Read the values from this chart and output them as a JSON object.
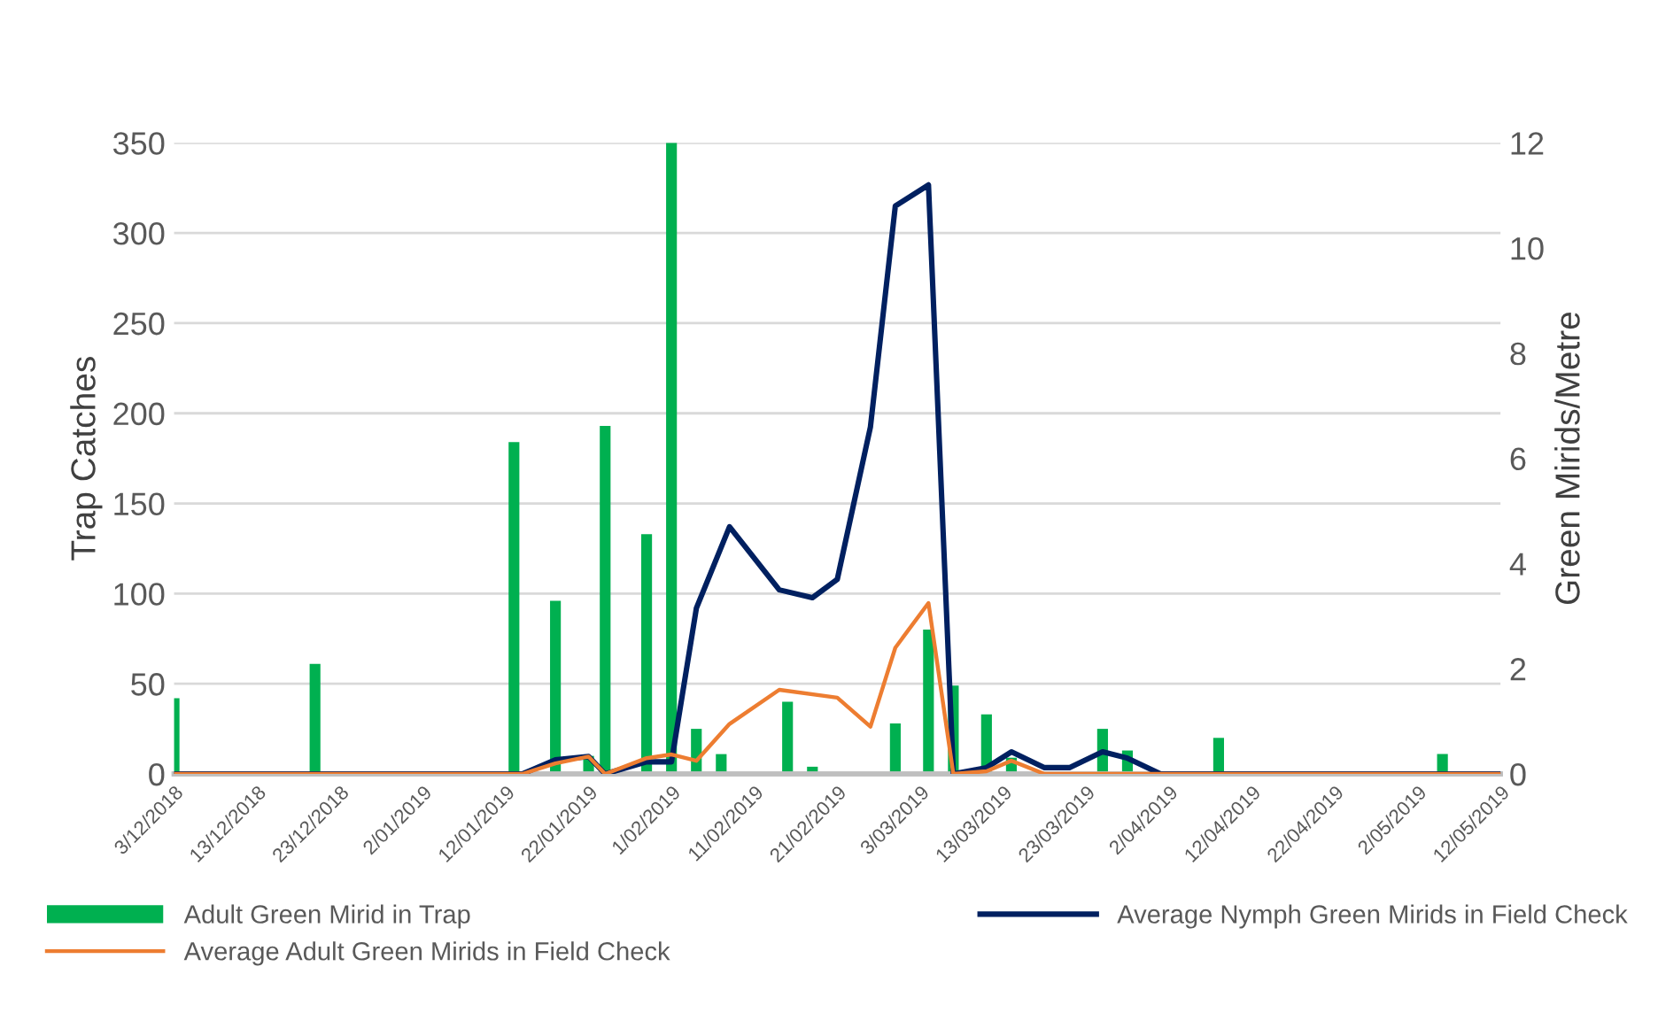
{
  "chart_data": {
    "type": "bar",
    "ylabel": "Trap Catches",
    "y2label": "Green Mirids/Metre",
    "xlim": [
      "2018-12-03",
      "2019-05-12"
    ],
    "xticks": [
      {
        "value": "2018-12-03",
        "label": "3/12/2018"
      },
      {
        "value": "2018-12-13",
        "label": "13/12/2018"
      },
      {
        "value": "2018-12-23",
        "label": "23/12/2018"
      },
      {
        "value": "2019-01-02",
        "label": "2/01/2019"
      },
      {
        "value": "2019-01-12",
        "label": "12/01/2019"
      },
      {
        "value": "2019-01-22",
        "label": "22/01/2019"
      },
      {
        "value": "2019-02-01",
        "label": "1/02/2019"
      },
      {
        "value": "2019-02-11",
        "label": "11/02/2019"
      },
      {
        "value": "2019-02-21",
        "label": "21/02/2019"
      },
      {
        "value": "2019-03-03",
        "label": "3/03/2019"
      },
      {
        "value": "2019-03-13",
        "label": "13/03/2019"
      },
      {
        "value": "2019-03-23",
        "label": "23/03/2019"
      },
      {
        "value": "2019-04-02",
        "label": "2/04/2019"
      },
      {
        "value": "2019-04-12",
        "label": "12/04/2019"
      },
      {
        "value": "2019-04-22",
        "label": "22/04/2019"
      },
      {
        "value": "2019-05-02",
        "label": "2/05/2019"
      },
      {
        "value": "2019-05-12",
        "label": "12/05/2019"
      }
    ],
    "ylim": [
      0,
      350
    ],
    "yticks": [
      0,
      50,
      100,
      150,
      200,
      250,
      300,
      350
    ],
    "y2lim": [
      0,
      12
    ],
    "y2ticks": [
      0,
      2,
      4,
      6,
      8,
      10,
      12
    ],
    "grid": "y",
    "legend": "bottom",
    "series": [
      {
        "name": "Adult Green Mirid in Trap",
        "color": "#00b050",
        "x": [
          "2018-12-03",
          "2018-12-20",
          "2019-01-13",
          "2019-01-18",
          "2019-01-22",
          "2019-01-24",
          "2019-01-29",
          "2019-02-01",
          "2019-02-04",
          "2019-02-07",
          "2019-02-15",
          "2019-02-18",
          "2019-02-28",
          "2019-03-04",
          "2019-03-07",
          "2019-03-11",
          "2019-03-14",
          "2019-03-25",
          "2019-03-28",
          "2019-04-08",
          "2019-05-05"
        ],
        "values": [
          42,
          61,
          184,
          96,
          10,
          193,
          133,
          350,
          25,
          11,
          40,
          4,
          28,
          80,
          49,
          33,
          9,
          25,
          13,
          20,
          11
        ]
      },
      {
        "name": "Average Nymph Green Mirids in Field Check",
        "type": "line",
        "axis": "y2",
        "color": "#002060",
        "x": [
          "2018-12-03",
          "2019-01-14",
          "2019-01-18",
          "2019-01-22",
          "2019-01-24",
          "2019-01-29",
          "2019-02-01",
          "2019-02-04",
          "2019-02-08",
          "2019-02-14",
          "2019-02-18",
          "2019-02-21",
          "2019-02-25",
          "2019-02-28",
          "2019-03-04",
          "2019-03-07",
          "2019-03-11",
          "2019-03-14",
          "2019-03-18",
          "2019-03-21",
          "2019-03-25",
          "2019-03-28",
          "2019-04-01",
          "2019-05-12"
        ],
        "values": [
          0,
          0,
          0.27,
          0.33,
          0,
          0.23,
          0.23,
          3.15,
          4.7,
          3.5,
          3.35,
          3.7,
          6.6,
          10.8,
          11.2,
          0,
          0.12,
          0.42,
          0.12,
          0.12,
          0.42,
          0.3,
          0,
          0
        ]
      },
      {
        "name": "Average Adult Green Mirids in Field Check",
        "type": "line",
        "axis": "y2",
        "color": "#ed7d31",
        "x": [
          "2018-12-03",
          "2019-01-14",
          "2019-01-18",
          "2019-01-22",
          "2019-01-24",
          "2019-01-29",
          "2019-02-01",
          "2019-02-04",
          "2019-02-08",
          "2019-02-14",
          "2019-02-21",
          "2019-02-25",
          "2019-02-28",
          "2019-03-04",
          "2019-03-07",
          "2019-03-11",
          "2019-03-14",
          "2019-03-18",
          "2019-05-12"
        ],
        "values": [
          0,
          0,
          0.2,
          0.33,
          0,
          0.3,
          0.37,
          0.25,
          0.95,
          1.6,
          1.45,
          0.9,
          2.4,
          3.25,
          0,
          0.05,
          0.25,
          0,
          0
        ]
      }
    ]
  }
}
